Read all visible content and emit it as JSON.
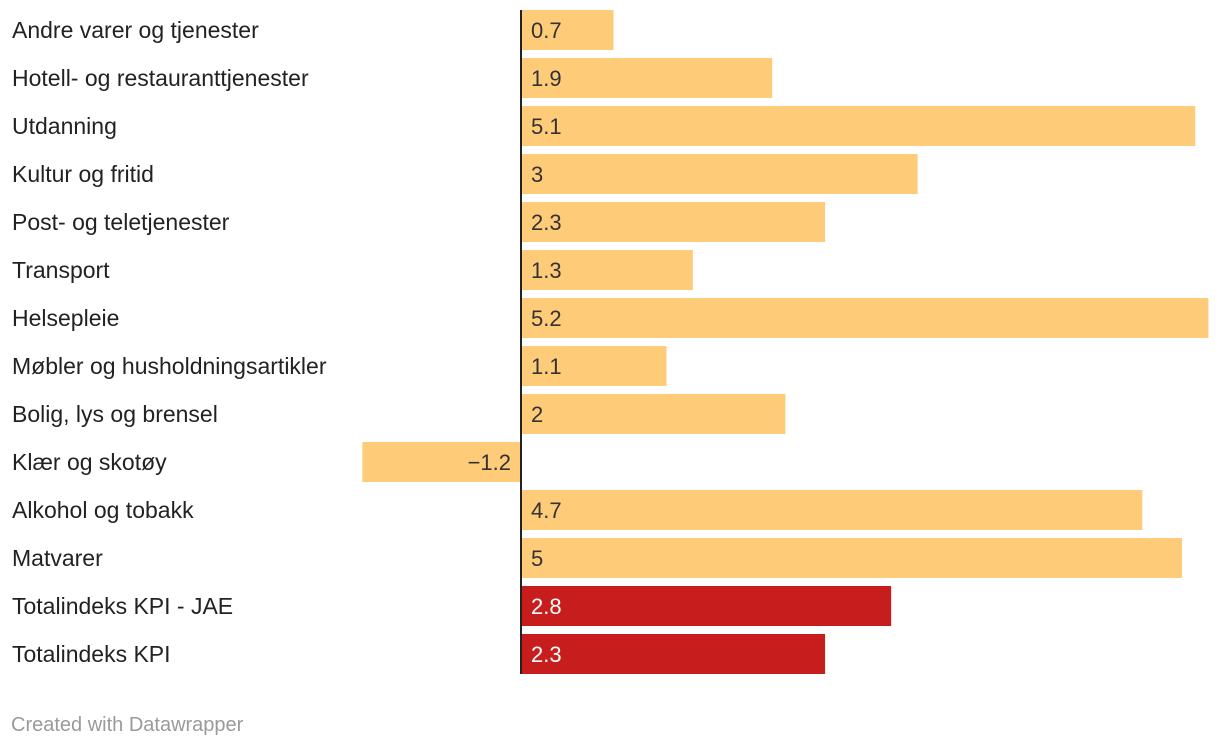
{
  "chart_data": {
    "type": "bar",
    "orientation": "horizontal",
    "title": "",
    "xlabel": "",
    "ylabel": "",
    "xlim": [
      -1.2,
      5.2
    ],
    "categories": [
      "Andre varer og tjenester",
      "Hotell- og restauranttjenester",
      "Utdanning",
      "Kultur og fritid",
      "Post- og teletjenester",
      "Transport",
      "Helsepleie",
      "Møbler og husholdningsartikler",
      "Bolig, lys og brensel",
      "Klær og skotøy",
      "Alkohol og tobakk",
      "Matvarer",
      "Totalindeks KPI - JAE",
      "Totalindeks KPI"
    ],
    "values": [
      0.7,
      1.9,
      5.1,
      3,
      2.3,
      1.3,
      5.2,
      1.1,
      2,
      -1.2,
      4.7,
      5,
      2.8,
      2.3
    ],
    "value_labels": [
      "0.7",
      "1.9",
      "5.1",
      "3",
      "2.3",
      "1.3",
      "5.2",
      "1.1",
      "2",
      "−1.2",
      "4.7",
      "5",
      "2.8",
      "2.3"
    ],
    "highlighted": [
      false,
      false,
      false,
      false,
      false,
      false,
      false,
      false,
      false,
      false,
      false,
      false,
      true,
      true
    ],
    "colors": {
      "default_bar": "#fecb78",
      "highlight_bar": "#c71e1d",
      "default_text": "#333333",
      "highlight_text": "#ffffff",
      "axis": "#222222"
    }
  },
  "footer": {
    "credit": "Created with Datawrapper"
  }
}
